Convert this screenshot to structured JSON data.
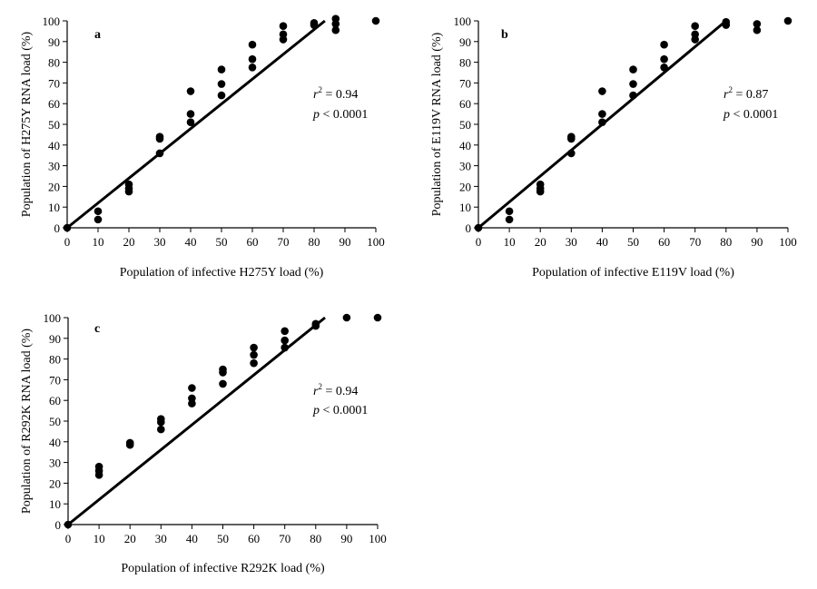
{
  "chart_data": [
    {
      "type": "scatter",
      "panel": "a",
      "xlabel": "Population of infective H275Y load (%)",
      "ylabel": "Population of H275Y RNA load (%)",
      "xlim": [
        0,
        100
      ],
      "ylim": [
        0,
        100
      ],
      "x_ticks": [
        "0",
        "10",
        "20",
        "30",
        "40",
        "50",
        "60",
        "70",
        "80",
        "90",
        "100"
      ],
      "y_ticks": [
        "0",
        "10",
        "20",
        "30",
        "40",
        "50",
        "60",
        "70",
        "80",
        "90",
        "100"
      ],
      "stat_r2_prefix": "r",
      "stat_r2_sup": "2",
      "stat_r2_value": " = 0.94",
      "stat_p_prefix": "p",
      "stat_p_value": " < 0.0001",
      "fit_line": {
        "x": [
          0,
          83.5
        ],
        "y": [
          0,
          100
        ]
      },
      "points": [
        {
          "x": 0,
          "y": 0
        },
        {
          "x": 10,
          "y": 8
        },
        {
          "x": 10,
          "y": 4
        },
        {
          "x": 20,
          "y": 21
        },
        {
          "x": 20,
          "y": 19
        },
        {
          "x": 20,
          "y": 17.5
        },
        {
          "x": 30,
          "y": 44
        },
        {
          "x": 30,
          "y": 43
        },
        {
          "x": 30,
          "y": 36
        },
        {
          "x": 40,
          "y": 66
        },
        {
          "x": 40,
          "y": 55
        },
        {
          "x": 40,
          "y": 51
        },
        {
          "x": 50,
          "y": 76.5
        },
        {
          "x": 50,
          "y": 69.5
        },
        {
          "x": 50,
          "y": 64
        },
        {
          "x": 60,
          "y": 88.5
        },
        {
          "x": 60,
          "y": 81.5
        },
        {
          "x": 60,
          "y": 77.5
        },
        {
          "x": 70,
          "y": 97.5
        },
        {
          "x": 70,
          "y": 93.5
        },
        {
          "x": 70,
          "y": 91
        },
        {
          "x": 80,
          "y": 99
        },
        {
          "x": 80,
          "y": 98
        },
        {
          "x": 87,
          "y": 101
        },
        {
          "x": 87,
          "y": 98.5
        },
        {
          "x": 87,
          "y": 95.5
        },
        {
          "x": 100,
          "y": 100
        }
      ]
    },
    {
      "type": "scatter",
      "panel": "b",
      "xlabel": "Population of infective E119V load (%)",
      "ylabel": "Population of E119V RNA load (%)",
      "xlim": [
        0,
        100
      ],
      "ylim": [
        0,
        100
      ],
      "x_ticks": [
        "0",
        "10",
        "20",
        "30",
        "40",
        "50",
        "60",
        "70",
        "80",
        "90",
        "100"
      ],
      "y_ticks": [
        "0",
        "10",
        "20",
        "30",
        "40",
        "50",
        "60",
        "70",
        "80",
        "90",
        "100"
      ],
      "stat_r2_prefix": "r",
      "stat_r2_sup": "2",
      "stat_r2_value": " = 0.87",
      "stat_p_prefix": "p",
      "stat_p_value": " < 0.0001",
      "fit_line": {
        "x": [
          0,
          80
        ],
        "y": [
          0,
          100
        ]
      },
      "points": [
        {
          "x": 0,
          "y": 0
        },
        {
          "x": 10,
          "y": 8
        },
        {
          "x": 10,
          "y": 4
        },
        {
          "x": 20,
          "y": 21
        },
        {
          "x": 20,
          "y": 19
        },
        {
          "x": 20,
          "y": 17.5
        },
        {
          "x": 30,
          "y": 44
        },
        {
          "x": 30,
          "y": 43
        },
        {
          "x": 30,
          "y": 36
        },
        {
          "x": 40,
          "y": 66
        },
        {
          "x": 40,
          "y": 55
        },
        {
          "x": 40,
          "y": 51
        },
        {
          "x": 50,
          "y": 76.5
        },
        {
          "x": 50,
          "y": 69.5
        },
        {
          "x": 50,
          "y": 64
        },
        {
          "x": 60,
          "y": 88.5
        },
        {
          "x": 60,
          "y": 81.5
        },
        {
          "x": 60,
          "y": 77.5
        },
        {
          "x": 70,
          "y": 97.5
        },
        {
          "x": 70,
          "y": 93.5
        },
        {
          "x": 70,
          "y": 91
        },
        {
          "x": 80,
          "y": 99.5
        },
        {
          "x": 80,
          "y": 98
        },
        {
          "x": 90,
          "y": 98.5
        },
        {
          "x": 90,
          "y": 95.5
        },
        {
          "x": 100,
          "y": 100
        }
      ]
    },
    {
      "type": "scatter",
      "panel": "c",
      "xlabel": "Population of infective R292K load (%)",
      "ylabel": "Population of R292K RNA load (%)",
      "xlim": [
        0,
        100
      ],
      "ylim": [
        0,
        100
      ],
      "x_ticks": [
        "0",
        "10",
        "20",
        "30",
        "40",
        "50",
        "60",
        "70",
        "80",
        "90",
        "100"
      ],
      "y_ticks": [
        "0",
        "10",
        "20",
        "30",
        "40",
        "50",
        "60",
        "70",
        "80",
        "90",
        "100"
      ],
      "stat_r2_prefix": "r",
      "stat_r2_sup": "2",
      "stat_r2_value": " = 0.94",
      "stat_p_prefix": "p",
      "stat_p_value": " < 0.0001",
      "fit_line": {
        "x": [
          0,
          83
        ],
        "y": [
          0,
          100
        ]
      },
      "points": [
        {
          "x": 0,
          "y": 0
        },
        {
          "x": 10,
          "y": 28
        },
        {
          "x": 10,
          "y": 26
        },
        {
          "x": 10,
          "y": 24
        },
        {
          "x": 20,
          "y": 39.5
        },
        {
          "x": 20,
          "y": 38.5
        },
        {
          "x": 30,
          "y": 51
        },
        {
          "x": 30,
          "y": 49.5
        },
        {
          "x": 30,
          "y": 46
        },
        {
          "x": 40,
          "y": 66
        },
        {
          "x": 40,
          "y": 61
        },
        {
          "x": 40,
          "y": 58.5
        },
        {
          "x": 50,
          "y": 75
        },
        {
          "x": 50,
          "y": 73.5
        },
        {
          "x": 50,
          "y": 68
        },
        {
          "x": 60,
          "y": 85.5
        },
        {
          "x": 60,
          "y": 82
        },
        {
          "x": 60,
          "y": 78
        },
        {
          "x": 70,
          "y": 93.5
        },
        {
          "x": 70,
          "y": 89
        },
        {
          "x": 70,
          "y": 85.5
        },
        {
          "x": 80,
          "y": 97
        },
        {
          "x": 80,
          "y": 96
        },
        {
          "x": 90,
          "y": 100
        },
        {
          "x": 100,
          "y": 100
        }
      ]
    }
  ]
}
